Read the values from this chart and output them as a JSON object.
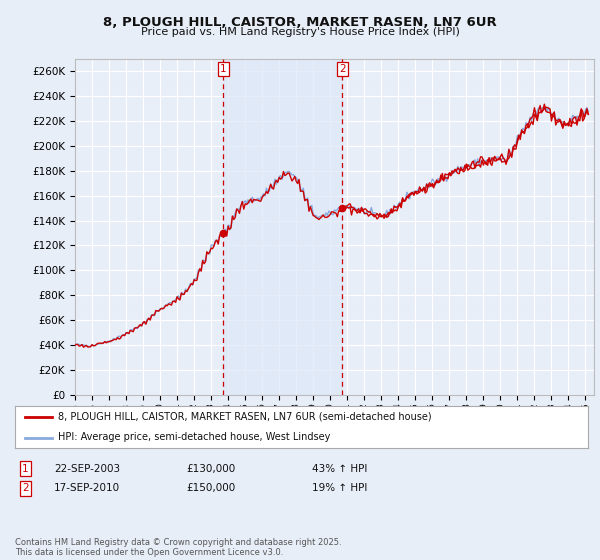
{
  "title_line1": "8, PLOUGH HILL, CAISTOR, MARKET RASEN, LN7 6UR",
  "title_line2": "Price paid vs. HM Land Registry's House Price Index (HPI)",
  "xlim_start": 1995.0,
  "xlim_end": 2025.5,
  "ylim": [
    0,
    270000
  ],
  "yticks": [
    0,
    20000,
    40000,
    60000,
    80000,
    100000,
    120000,
    140000,
    160000,
    180000,
    200000,
    220000,
    240000,
    260000
  ],
  "background_color": "#e8eef8",
  "plot_bg_color": "#e8eef8",
  "grid_color": "#ffffff",
  "transaction1_x": 2003.72,
  "transaction1_y": 130000,
  "transaction2_x": 2010.71,
  "transaction2_y": 150000,
  "legend_line1": "8, PLOUGH HILL, CAISTOR, MARKET RASEN, LN7 6UR (semi-detached house)",
  "legend_line2": "HPI: Average price, semi-detached house, West Lindsey",
  "table_row1": [
    "1",
    "22-SEP-2003",
    "£130,000",
    "43% ↑ HPI"
  ],
  "table_row2": [
    "2",
    "17-SEP-2010",
    "£150,000",
    "19% ↑ HPI"
  ],
  "footer": "Contains HM Land Registry data © Crown copyright and database right 2025.\nThis data is licensed under the Open Government Licence v3.0.",
  "red_color": "#cc0000",
  "blue_color": "#88aadd",
  "shade_color": "#dde8f8"
}
